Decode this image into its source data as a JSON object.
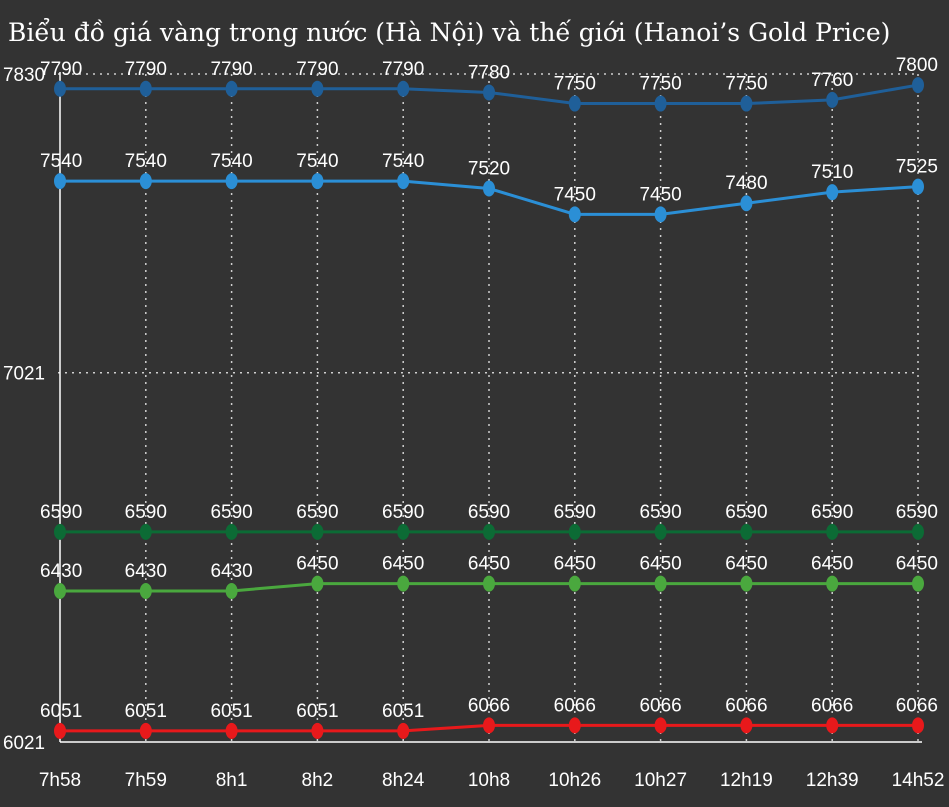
{
  "chart_data": {
    "type": "line",
    "title": "Biểu đồ giá vàng trong nước (Hà Nội) và thế giới (Hanoi’s Gold Price)",
    "categories": [
      "7h58",
      "7h59",
      "8h1",
      "8h2",
      "8h24",
      "10h8",
      "10h26",
      "10h27",
      "12h19",
      "12h39",
      "14h52"
    ],
    "ylim": [
      6021,
      7830
    ],
    "yticks": [
      6021,
      7021,
      7830
    ],
    "grid": true,
    "series": [
      {
        "values": [
          7790,
          7790,
          7790,
          7790,
          7790,
          7780,
          7750,
          7750,
          7750,
          7760,
          7800
        ],
        "color": "#1f5f99"
      },
      {
        "values": [
          7540,
          7540,
          7540,
          7540,
          7540,
          7520,
          7450,
          7450,
          7480,
          7510,
          7525
        ],
        "color": "#2b8fd6"
      },
      {
        "values": [
          6590,
          6590,
          6590,
          6590,
          6590,
          6590,
          6590,
          6590,
          6590,
          6590,
          6590
        ],
        "color": "#0c6b35"
      },
      {
        "values": [
          6430,
          6430,
          6430,
          6450,
          6450,
          6450,
          6450,
          6450,
          6450,
          6450,
          6450
        ],
        "color": "#4aa83e"
      },
      {
        "values": [
          6051,
          6051,
          6051,
          6051,
          6051,
          6066,
          6066,
          6066,
          6066,
          6066,
          6066
        ],
        "color": "#e8191b"
      }
    ]
  },
  "colors": {
    "background": "#333333",
    "grid": "#d0d0d0",
    "axis": "#ffffff",
    "text": "#ffffff"
  }
}
